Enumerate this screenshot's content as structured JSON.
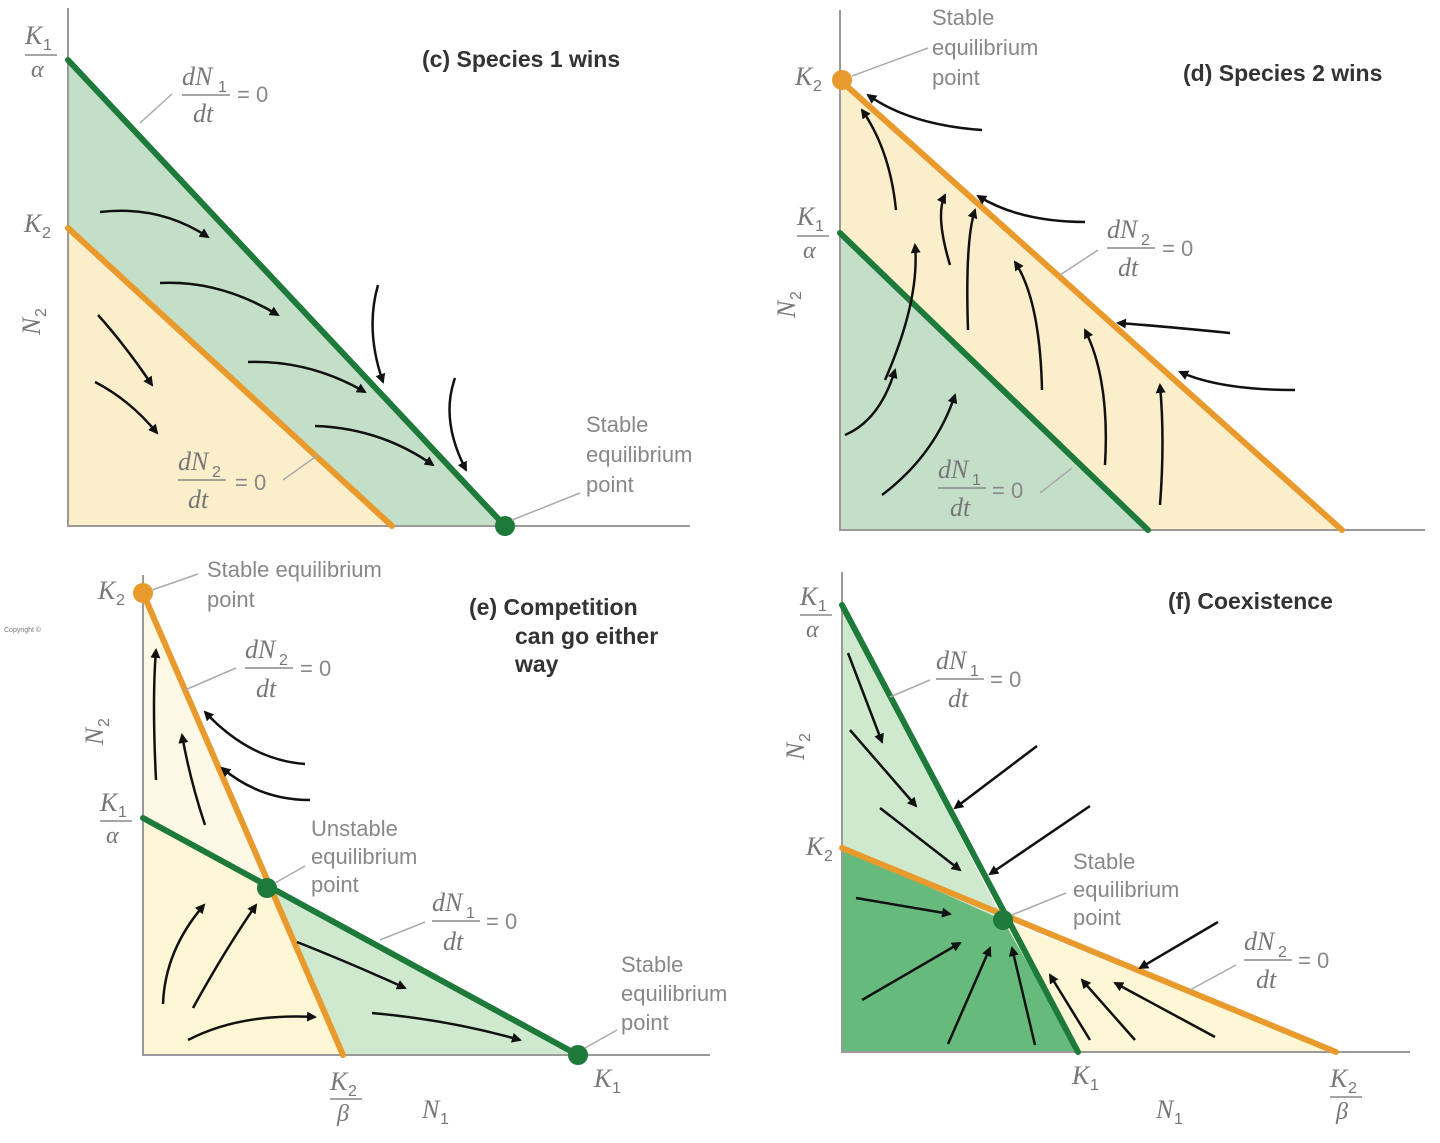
{
  "panels": {
    "c": {
      "title": "(c)  Species 1 wins",
      "y_top": {
        "num": "K",
        "numsub": "1",
        "den": "α"
      },
      "y_mid": {
        "main": "K",
        "sub": "2"
      },
      "y_axis": {
        "main": "N",
        "sub": "2"
      },
      "iso1": {
        "num": "dN",
        "numsub": "1",
        "den": "dt",
        "eq": "= 0"
      },
      "iso2": {
        "num": "dN",
        "numsub": "2",
        "den": "dt",
        "eq": "= 0"
      },
      "point": {
        "line1": "Stable",
        "line2": "equilibrium",
        "line3": "point"
      }
    },
    "d": {
      "title": "(d)  Species 2 wins",
      "y_top": {
        "main": "K",
        "sub": "2"
      },
      "y_mid": {
        "num": "K",
        "numsub": "1",
        "den": "α"
      },
      "y_axis": {
        "main": "N",
        "sub": "2"
      },
      "iso2": {
        "num": "dN",
        "numsub": "2",
        "den": "dt",
        "eq": "= 0"
      },
      "iso1": {
        "num": "dN",
        "numsub": "1",
        "den": "dt",
        "eq": "= 0"
      },
      "point": {
        "line1": "Stable",
        "line2": "equilibrium",
        "line3": "point"
      }
    },
    "e": {
      "title1": "(e)  Competition",
      "title2": "can go either",
      "title3": "way",
      "y_top": {
        "main": "K",
        "sub": "2"
      },
      "y_mid": {
        "num": "K",
        "numsub": "1",
        "den": "α"
      },
      "y_axis": {
        "main": "N",
        "sub": "2"
      },
      "x_mid": {
        "num": "K",
        "numsub": "2",
        "den": "β"
      },
      "x_axis": {
        "main": "N",
        "sub": "1"
      },
      "x_end": {
        "main": "K",
        "sub": "1"
      },
      "iso2": {
        "num": "dN",
        "numsub": "2",
        "den": "dt",
        "eq": "= 0"
      },
      "iso1": {
        "num": "dN",
        "numsub": "1",
        "den": "dt",
        "eq": "= 0"
      },
      "top_point": {
        "line1": "Stable equilibrium",
        "line2": "point"
      },
      "mid_point": {
        "line1": "Unstable",
        "line2": "equilibrium",
        "line3": "point"
      },
      "end_point": {
        "line1": "Stable",
        "line2": "equilibrium",
        "line3": "point"
      },
      "copyright": "Copyright ©"
    },
    "f": {
      "title": "(f)  Coexistence",
      "y_top": {
        "num": "K",
        "numsub": "1",
        "den": "α"
      },
      "y_mid": {
        "main": "K",
        "sub": "2"
      },
      "y_axis": {
        "main": "N",
        "sub": "2"
      },
      "x_mid": {
        "main": "K",
        "sub": "1"
      },
      "x_axis": {
        "main": "N",
        "sub": "1"
      },
      "x_end": {
        "num": "K",
        "numsub": "2",
        "den": "β"
      },
      "iso1": {
        "num": "dN",
        "numsub": "1",
        "den": "dt",
        "eq": "= 0"
      },
      "iso2": {
        "num": "dN",
        "numsub": "2",
        "den": "dt",
        "eq": "= 0"
      },
      "point": {
        "line1": "Stable",
        "line2": "equilibrium",
        "line3": "point"
      }
    }
  },
  "colors": {
    "species1_line": "#1e7a3a",
    "species2_line": "#e89a2c",
    "species1_fill": "#c4dfc8",
    "species2_fill": "#fbeecb",
    "dark_green_fill": "#66bb7c",
    "light_yellow_fill": "#fdf7d6",
    "light_green_fill": "#cfe9cf"
  }
}
